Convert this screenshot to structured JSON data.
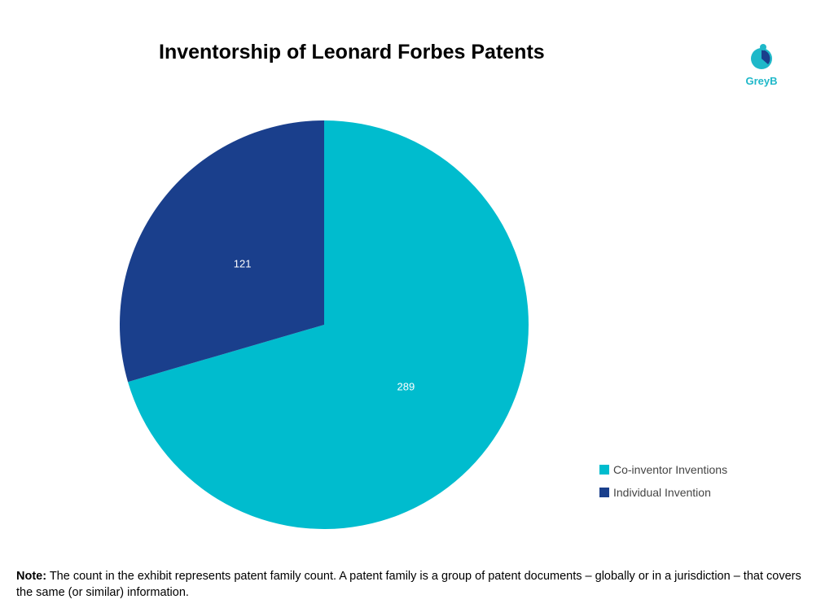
{
  "chart_data": {
    "type": "pie",
    "title": "Inventorship of Leonard Forbes Patents",
    "slices": [
      {
        "label": "Co-inventor Inventions",
        "value": 289,
        "color": "#00BCCE"
      },
      {
        "label": "Individual Invention",
        "value": 121,
        "color": "#1A3F8C"
      }
    ],
    "legend_placement": "bottom-right"
  },
  "logo": {
    "text": "GreyB",
    "color": "#1fb8c9"
  },
  "note": {
    "label": "Note:",
    "text": " The count in the exhibit represents patent family count. A patent family is a group of patent documents – globally or in a jurisdiction – that covers the same (or similar) information."
  }
}
